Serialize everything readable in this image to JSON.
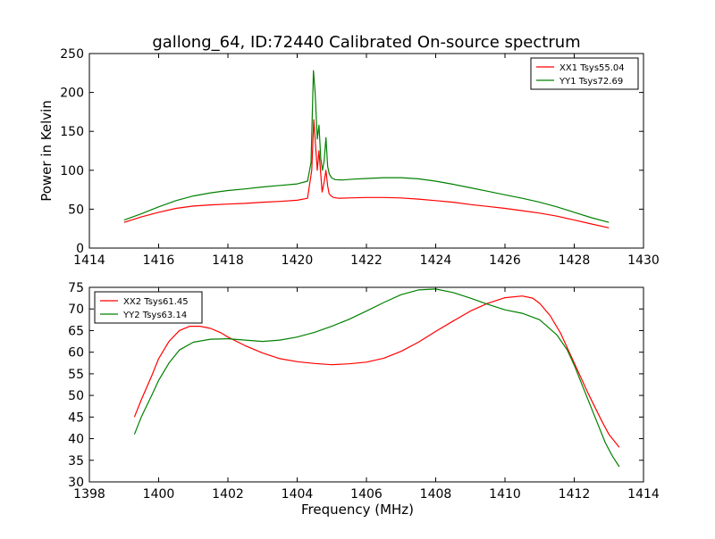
{
  "figure": {
    "title": "gallong_64, ID:72440 Calibrated On-source spectrum"
  },
  "chart_data": [
    {
      "type": "line",
      "title": "gallong_64, ID:72440 Calibrated On-source spectrum",
      "xlabel": "",
      "ylabel": "Power in Kelvin",
      "xlim": [
        1414,
        1430
      ],
      "ylim": [
        0,
        250
      ],
      "xticks": [
        1414,
        1416,
        1418,
        1420,
        1422,
        1424,
        1426,
        1428,
        1430
      ],
      "yticks": [
        0,
        50,
        100,
        150,
        200,
        250
      ],
      "grid": false,
      "legend": "top-right",
      "series": [
        {
          "name": "XX1 Tsys55.04",
          "color": "#ff0000",
          "x": [
            1415.0,
            1415.5,
            1416.0,
            1416.5,
            1417.0,
            1417.5,
            1418.0,
            1418.5,
            1419.0,
            1419.5,
            1420.0,
            1420.3,
            1420.42,
            1420.48,
            1420.52,
            1420.58,
            1420.63,
            1420.68,
            1420.72,
            1420.78,
            1420.83,
            1420.88,
            1420.92,
            1420.98,
            1421.05,
            1421.2,
            1421.5,
            1422.0,
            1422.5,
            1423.0,
            1423.5,
            1424.0,
            1424.5,
            1425.0,
            1425.5,
            1426.0,
            1426.5,
            1427.0,
            1427.5,
            1428.0,
            1428.5,
            1429.0
          ],
          "y": [
            33,
            40,
            46,
            51,
            54,
            55.5,
            56.5,
            57.5,
            59,
            60,
            61.5,
            64,
            100,
            165,
            140,
            100,
            125,
            95,
            72,
            85,
            100,
            80,
            70,
            67,
            65,
            64,
            64.5,
            65,
            65,
            64.5,
            63,
            61,
            59,
            56,
            53.5,
            51,
            48,
            45,
            41,
            36,
            31,
            26
          ]
        },
        {
          "name": "YY1 Tsys72.69",
          "color": "#008000",
          "x": [
            1415.0,
            1415.5,
            1416.0,
            1416.5,
            1417.0,
            1417.5,
            1418.0,
            1418.5,
            1419.0,
            1419.5,
            1420.0,
            1420.3,
            1420.4,
            1420.47,
            1420.52,
            1420.58,
            1420.63,
            1420.68,
            1420.73,
            1420.78,
            1420.83,
            1420.88,
            1420.93,
            1421.0,
            1421.1,
            1421.3,
            1421.6,
            1422.0,
            1422.5,
            1423.0,
            1423.5,
            1424.0,
            1424.5,
            1425.0,
            1425.5,
            1426.0,
            1426.5,
            1427.0,
            1427.5,
            1428.0,
            1428.5,
            1429.0
          ],
          "y": [
            36,
            44,
            53,
            61,
            67,
            71,
            74,
            76,
            78.5,
            80.5,
            82.5,
            86,
            110,
            228,
            200,
            140,
            158,
            115,
            100,
            112,
            142,
            105,
            95,
            90,
            88,
            87.5,
            88.5,
            89.5,
            90.5,
            90.5,
            89,
            86,
            82,
            77.5,
            73,
            68.5,
            64,
            59,
            53,
            46,
            39,
            33
          ]
        }
      ]
    },
    {
      "type": "line",
      "title": "",
      "xlabel": "Frequency (MHz)",
      "ylabel": "",
      "xlim": [
        1398,
        1414
      ],
      "ylim": [
        30,
        75
      ],
      "xticks": [
        1398,
        1400,
        1402,
        1404,
        1406,
        1408,
        1410,
        1412,
        1414
      ],
      "yticks": [
        30,
        35,
        40,
        45,
        50,
        55,
        60,
        65,
        70,
        75
      ],
      "grid": false,
      "legend": "top-left",
      "series": [
        {
          "name": "XX2 Tsys61.45",
          "color": "#ff0000",
          "x": [
            1399.3,
            1399.5,
            1399.8,
            1400.0,
            1400.3,
            1400.6,
            1400.9,
            1401.2,
            1401.5,
            1401.8,
            1402.0,
            1402.5,
            1403.0,
            1403.5,
            1404.0,
            1404.5,
            1405.0,
            1405.5,
            1406.0,
            1406.5,
            1407.0,
            1407.5,
            1408.0,
            1408.5,
            1409.0,
            1409.5,
            1410.0,
            1410.5,
            1410.8,
            1411.0,
            1411.3,
            1411.6,
            1412.0,
            1412.4,
            1412.8,
            1413.0,
            1413.3
          ],
          "y": [
            45,
            49,
            54.5,
            58.5,
            62.5,
            65,
            66,
            66,
            65.5,
            64.5,
            63.5,
            61.5,
            59.8,
            58.5,
            57.8,
            57.4,
            57.1,
            57.3,
            57.7,
            58.6,
            60.2,
            62.3,
            64.8,
            67.2,
            69.5,
            71.3,
            72.6,
            73.0,
            72.5,
            71.3,
            68.5,
            64.5,
            57.5,
            50.5,
            44,
            41,
            38
          ]
        },
        {
          "name": "YY2 Tsys63.14",
          "color": "#008000",
          "x": [
            1399.3,
            1399.5,
            1399.8,
            1400.0,
            1400.3,
            1400.6,
            1401.0,
            1401.5,
            1402.0,
            1402.5,
            1403.0,
            1403.5,
            1404.0,
            1404.5,
            1405.0,
            1405.5,
            1406.0,
            1406.5,
            1407.0,
            1407.5,
            1408.0,
            1408.5,
            1409.0,
            1409.5,
            1410.0,
            1410.5,
            1411.0,
            1411.5,
            1411.8,
            1412.0,
            1412.3,
            1412.6,
            1412.9,
            1413.1,
            1413.3
          ],
          "y": [
            41,
            45,
            50,
            53.5,
            57.5,
            60.5,
            62.3,
            63,
            63.1,
            62.8,
            62.5,
            62.8,
            63.5,
            64.6,
            66,
            67.6,
            69.5,
            71.5,
            73.3,
            74.4,
            74.6,
            73.8,
            72.5,
            71.1,
            69.8,
            69.0,
            67.5,
            64,
            60.5,
            57,
            51,
            45,
            39,
            36,
            33.5
          ]
        }
      ]
    }
  ]
}
